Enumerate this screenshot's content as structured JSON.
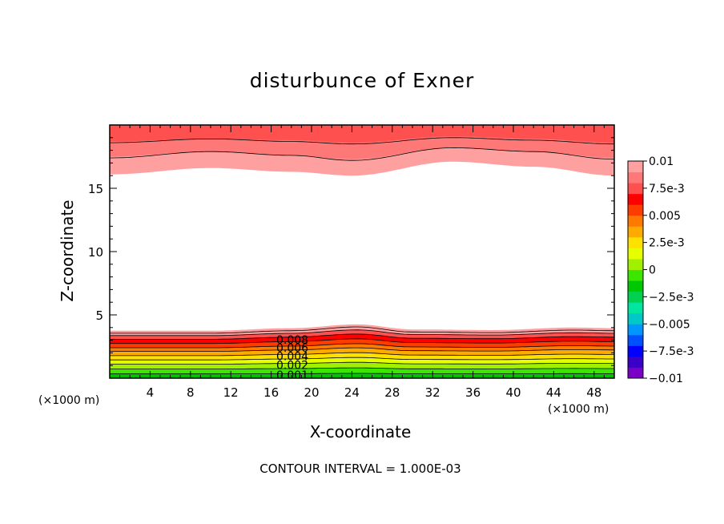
{
  "chart_data": {
    "type": "contour",
    "title": "disturbunce of Exner",
    "xlabel": "X-coordinate",
    "ylabel": "Z-coordinate",
    "x_unit_label": "(×1000 m)",
    "x_unit_label_right": "(×1000 m)",
    "xlim": [
      0,
      50
    ],
    "ylim": [
      0,
      20
    ],
    "x_ticks": [
      "4",
      "8",
      "12",
      "16",
      "20",
      "24",
      "28",
      "32",
      "36",
      "40",
      "44",
      "48"
    ],
    "y_ticks": [
      "5",
      "10",
      "15"
    ],
    "contour_interval_note": "CONTOUR INTERVAL = 1.000E-03",
    "contour_labels": [
      "0.008",
      "0.006",
      "0.004",
      "0.002",
      "0.001"
    ],
    "colorbar": {
      "tick_labels": [
        "0.01",
        "7.5e-3",
        "0.005",
        "2.5e-3",
        "0",
        "−2.5e-3",
        "−0.005",
        "−7.5e-3",
        "−0.01"
      ],
      "range": [
        -0.01,
        0.01
      ],
      "colors": [
        "#7a00c8",
        "#3a00c8",
        "#0000ff",
        "#0050ff",
        "#0096ff",
        "#00c8c8",
        "#00e6a0",
        "#00d250",
        "#00c800",
        "#3ce600",
        "#a0f000",
        "#e6ff00",
        "#ffe100",
        "#ffaa00",
        "#ff7800",
        "#ff3c00",
        "#ff0000",
        "#ff5050",
        "#ff7878",
        "#ffa0a0"
      ]
    },
    "bottom_layer": {
      "levels": [
        0.001,
        0.002,
        0.003,
        0.004,
        0.005,
        0.006,
        0.007,
        0.008,
        0.009,
        0.01
      ],
      "colors": [
        "#00c800",
        "#3ce600",
        "#a0f000",
        "#e6ff00",
        "#ffe100",
        "#ffaa00",
        "#ff7800",
        "#ff3c00",
        "#ff0000",
        "#ff5050"
      ],
      "top_fill_color": "#ffa0a0",
      "top_fill_height": 3.9,
      "level_heights": [
        0.35,
        0.75,
        1.15,
        1.5,
        1.85,
        2.2,
        2.5,
        2.85,
        3.2,
        3.5
      ],
      "perturbation": {
        "x": [
          0,
          10,
          18,
          24.5,
          30,
          38,
          46,
          50
        ],
        "dz": [
          -0.15,
          -0.15,
          0.05,
          0.35,
          -0.05,
          -0.1,
          0.1,
          0.05
        ]
      }
    },
    "top_layer": {
      "colors": [
        "#ffa0a0",
        "#ff7878",
        "#ff5050"
      ],
      "boundaries": [
        {
          "x": [
            0,
            10,
            18,
            24,
            34,
            42,
            50
          ],
          "z": [
            16.1,
            16.6,
            16.3,
            16.0,
            17.1,
            16.7,
            16.0
          ]
        },
        {
          "x": [
            0,
            10,
            18,
            24,
            34,
            42,
            50
          ],
          "z": [
            17.5,
            17.9,
            17.6,
            17.3,
            18.2,
            17.9,
            17.4
          ]
        },
        {
          "x": [
            0,
            10,
            18,
            24,
            34,
            42,
            50
          ],
          "z": [
            18.7,
            18.9,
            18.8,
            18.6,
            19.1,
            18.9,
            18.6
          ]
        }
      ],
      "contour_lines": [
        {
          "x": [
            0,
            10,
            18,
            24,
            34,
            42,
            50
          ],
          "z": [
            18.6,
            18.9,
            18.7,
            18.5,
            19.0,
            18.8,
            18.5
          ]
        },
        {
          "x": [
            0,
            10,
            18,
            24,
            34,
            42,
            50
          ],
          "z": [
            17.4,
            17.9,
            17.6,
            17.2,
            18.2,
            17.9,
            17.3
          ]
        }
      ]
    }
  }
}
